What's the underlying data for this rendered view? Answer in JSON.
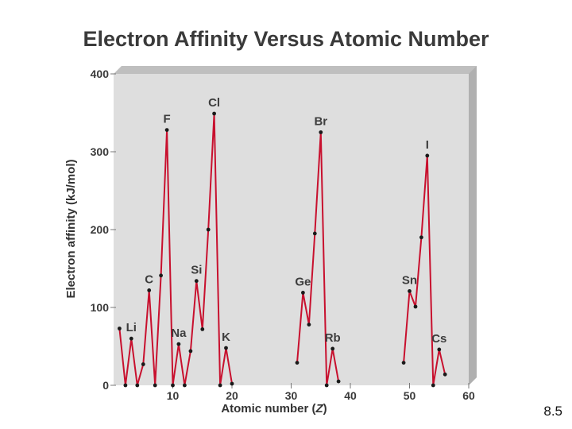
{
  "slide_number": "8.5",
  "chart_data": {
    "type": "line",
    "title": "Electron Affinity Versus Atomic Number",
    "xlabel": "Atomic number (Z)",
    "ylabel": "Electron affinity (kJ/mol)",
    "xlim": [
      0,
      60
    ],
    "ylim": [
      0,
      400
    ],
    "xticks": [
      "10",
      "20",
      "30",
      "40",
      "50",
      "60"
    ],
    "yticks": [
      "0",
      "100",
      "200",
      "300",
      "400"
    ],
    "grid": false,
    "line_color": "#c8102e",
    "marker_color": "#1a1a1a",
    "plot_background": "#dedede",
    "segments": [
      [
        [
          1,
          73
        ],
        [
          2,
          0
        ],
        [
          3,
          60
        ],
        [
          4,
          0
        ],
        [
          5,
          27
        ],
        [
          6,
          122
        ],
        [
          7,
          0
        ],
        [
          8,
          141
        ],
        [
          9,
          328
        ],
        [
          10,
          0
        ],
        [
          11,
          53
        ],
        [
          12,
          0
        ],
        [
          13,
          44
        ],
        [
          14,
          134
        ],
        [
          15,
          72
        ],
        [
          16,
          200
        ],
        [
          17,
          349
        ],
        [
          18,
          0
        ],
        [
          19,
          48
        ],
        [
          20,
          2
        ]
      ],
      [
        [
          31,
          29
        ],
        [
          32,
          119
        ],
        [
          33,
          78
        ],
        [
          34,
          195
        ],
        [
          35,
          325
        ],
        [
          36,
          0
        ],
        [
          37,
          47
        ],
        [
          38,
          5
        ]
      ],
      [
        [
          49,
          29
        ],
        [
          50,
          121
        ],
        [
          51,
          101
        ],
        [
          52,
          190
        ],
        [
          53,
          295
        ],
        [
          54,
          0
        ],
        [
          55,
          46
        ],
        [
          56,
          14
        ]
      ]
    ],
    "point_labels": [
      {
        "text": "Li",
        "x": 3,
        "y": 60,
        "pos": "above"
      },
      {
        "text": "C",
        "x": 6,
        "y": 122,
        "pos": "above"
      },
      {
        "text": "F",
        "x": 9,
        "y": 328,
        "pos": "above"
      },
      {
        "text": "Na",
        "x": 11,
        "y": 53,
        "pos": "above"
      },
      {
        "text": "Si",
        "x": 14,
        "y": 134,
        "pos": "above"
      },
      {
        "text": "Cl",
        "x": 17,
        "y": 349,
        "pos": "above"
      },
      {
        "text": "K",
        "x": 19,
        "y": 48,
        "pos": "above"
      },
      {
        "text": "Ge",
        "x": 32,
        "y": 119,
        "pos": "above"
      },
      {
        "text": "Br",
        "x": 35,
        "y": 325,
        "pos": "above"
      },
      {
        "text": "Rb",
        "x": 37,
        "y": 47,
        "pos": "above"
      },
      {
        "text": "Sn",
        "x": 50,
        "y": 121,
        "pos": "above"
      },
      {
        "text": "I",
        "x": 53,
        "y": 295,
        "pos": "above"
      },
      {
        "text": "Cs",
        "x": 55,
        "y": 46,
        "pos": "above"
      }
    ]
  }
}
